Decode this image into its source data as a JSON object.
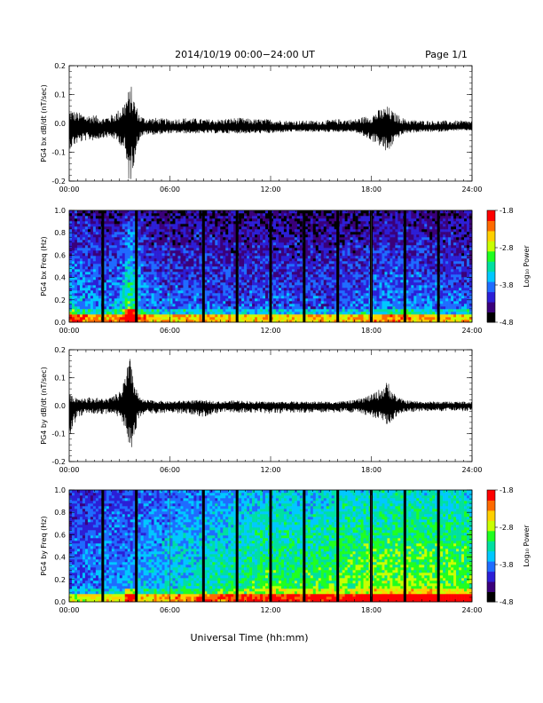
{
  "header": {
    "title": "2014/10/19  00:00−24:00 UT",
    "page": "Page 1/1"
  },
  "footer": {
    "xlabel": "Universal Time (hh:mm)"
  },
  "colorbar": {
    "label": "Log₁₀ Power",
    "ticks": [
      "-1.8",
      "-2.8",
      "-3.8",
      "-4.8"
    ],
    "colors": [
      "#000000",
      "#3a007a",
      "#2c1fd6",
      "#1f6cff",
      "#00c8ff",
      "#00e0a0",
      "#20ff20",
      "#c8ff00",
      "#ffd000",
      "#ff6a00",
      "#ff0000"
    ]
  },
  "colors": {
    "trace": "#000000",
    "frame": "#000000"
  },
  "chart_data": [
    {
      "type": "line",
      "ylabel": "PG4 bx dB/dt (nT/sec)",
      "xlim": [
        "00:00",
        "24:00"
      ],
      "ylim": [
        -0.2,
        0.2
      ],
      "xticks": [
        "00:00",
        "06:00",
        "12:00",
        "18:00",
        "24:00"
      ],
      "yticks": [
        "-0.2",
        "-0.1",
        "0.0",
        "0.1",
        "0.2"
      ],
      "x_hours": [
        0,
        0.5,
        1,
        1.5,
        2,
        2.5,
        3,
        3.3,
        3.5,
        3.7,
        3.9,
        4.2,
        4.5,
        5,
        6,
        7,
        8,
        9,
        10,
        11,
        12,
        13,
        14,
        15,
        16,
        17,
        18,
        18.5,
        19,
        19.3,
        19.6,
        20,
        21,
        22,
        23,
        24
      ],
      "envelope_upper": [
        0.05,
        0.04,
        0.03,
        0.03,
        0.02,
        0.03,
        0.05,
        0.08,
        0.11,
        0.13,
        0.08,
        0.03,
        0.02,
        0.02,
        0.015,
        0.02,
        0.015,
        0.015,
        0.02,
        0.015,
        0.015,
        0.01,
        0.01,
        0.01,
        0.015,
        0.015,
        0.03,
        0.05,
        0.06,
        0.04,
        0.03,
        0.015,
        0.01,
        0.01,
        0.01,
        0.01
      ],
      "envelope_lower": [
        -0.09,
        -0.07,
        -0.06,
        -0.06,
        -0.05,
        -0.05,
        -0.07,
        -0.1,
        -0.2,
        -0.2,
        -0.12,
        -0.05,
        -0.04,
        -0.04,
        -0.035,
        -0.035,
        -0.035,
        -0.035,
        -0.035,
        -0.035,
        -0.035,
        -0.03,
        -0.03,
        -0.03,
        -0.03,
        -0.03,
        -0.06,
        -0.08,
        -0.11,
        -0.07,
        -0.05,
        -0.035,
        -0.03,
        -0.03,
        -0.025,
        -0.025
      ],
      "baseline": -0.015
    },
    {
      "type": "heatmap",
      "ylabel": "PG4 bx Freq (Hz)",
      "xlim": [
        "00:00",
        "24:00"
      ],
      "ylim": [
        0.0,
        1.0
      ],
      "xticks": [
        "00:00",
        "06:00",
        "12:00",
        "18:00",
        "24:00"
      ],
      "yticks": [
        "0.0",
        "0.2",
        "0.4",
        "0.6",
        "0.8",
        "1.0"
      ],
      "zlim": [
        -4.8,
        -1.8
      ],
      "gap_hours": [
        2,
        4,
        8,
        10,
        12,
        14,
        16,
        18,
        20,
        22
      ],
      "profile_hours": [
        0,
        1,
        2,
        3,
        3.6,
        4.5,
        6,
        8,
        10,
        12,
        14,
        16,
        18,
        19.5,
        21,
        22,
        23,
        24
      ],
      "profile_level": [
        0.45,
        0.4,
        0.35,
        0.4,
        0.65,
        0.35,
        0.3,
        0.32,
        0.28,
        0.3,
        0.28,
        0.28,
        0.33,
        0.4,
        0.35,
        0.32,
        0.3,
        0.3
      ],
      "background": "deep blue / black, low-frequency band green-yellow"
    },
    {
      "type": "line",
      "ylabel": "PG4 by dB/dt (nT/sec)",
      "xlim": [
        "00:00",
        "24:00"
      ],
      "ylim": [
        -0.2,
        0.2
      ],
      "xticks": [
        "00:00",
        "06:00",
        "12:00",
        "18:00",
        "24:00"
      ],
      "yticks": [
        "-0.2",
        "-0.1",
        "0.0",
        "0.1",
        "0.2"
      ],
      "x_hours": [
        0,
        0.5,
        1,
        1.5,
        2,
        2.5,
        3,
        3.3,
        3.5,
        3.7,
        3.9,
        4.2,
        4.5,
        5,
        6,
        7,
        8,
        9,
        10,
        11,
        12,
        13,
        14,
        15,
        16,
        17,
        18,
        18.5,
        19,
        19.3,
        19.6,
        20,
        21,
        22,
        23,
        24
      ],
      "envelope_upper": [
        0.04,
        0.03,
        0.03,
        0.03,
        0.025,
        0.03,
        0.05,
        0.1,
        0.15,
        0.18,
        0.08,
        0.03,
        0.02,
        0.02,
        0.015,
        0.02,
        0.02,
        0.015,
        0.02,
        0.015,
        0.015,
        0.015,
        0.015,
        0.015,
        0.015,
        0.02,
        0.04,
        0.06,
        0.09,
        0.05,
        0.03,
        0.02,
        0.015,
        0.015,
        0.015,
        0.015
      ],
      "envelope_lower": [
        -0.12,
        -0.04,
        -0.03,
        -0.03,
        -0.03,
        -0.03,
        -0.05,
        -0.08,
        -0.15,
        -0.17,
        -0.1,
        -0.04,
        -0.03,
        -0.03,
        -0.025,
        -0.03,
        -0.04,
        -0.025,
        -0.025,
        -0.025,
        -0.03,
        -0.025,
        -0.025,
        -0.025,
        -0.025,
        -0.025,
        -0.04,
        -0.05,
        -0.07,
        -0.05,
        -0.035,
        -0.025,
        -0.02,
        -0.02,
        -0.02,
        -0.02
      ],
      "baseline": 0.0
    },
    {
      "type": "heatmap",
      "ylabel": "PG4 by Freq (Hz)",
      "xlim": [
        "00:00",
        "24:00"
      ],
      "ylim": [
        0.0,
        1.0
      ],
      "xticks": [
        "00:00",
        "06:00",
        "12:00",
        "18:00",
        "24:00"
      ],
      "yticks": [
        "0.0",
        "0.2",
        "0.4",
        "0.6",
        "0.8",
        "1.0"
      ],
      "zlim": [
        -4.8,
        -1.8
      ],
      "gap_hours": [
        2,
        4,
        8,
        10,
        12,
        14,
        16,
        18,
        20,
        22
      ],
      "profile_hours": [
        0,
        2,
        4,
        6,
        8,
        10,
        12,
        14,
        16,
        18,
        20,
        22,
        24
      ],
      "profile_level": [
        0.3,
        0.35,
        0.38,
        0.45,
        0.5,
        0.55,
        0.62,
        0.6,
        0.65,
        0.68,
        0.7,
        0.68,
        0.66
      ],
      "background": "blue left, cyan-green right"
    }
  ]
}
